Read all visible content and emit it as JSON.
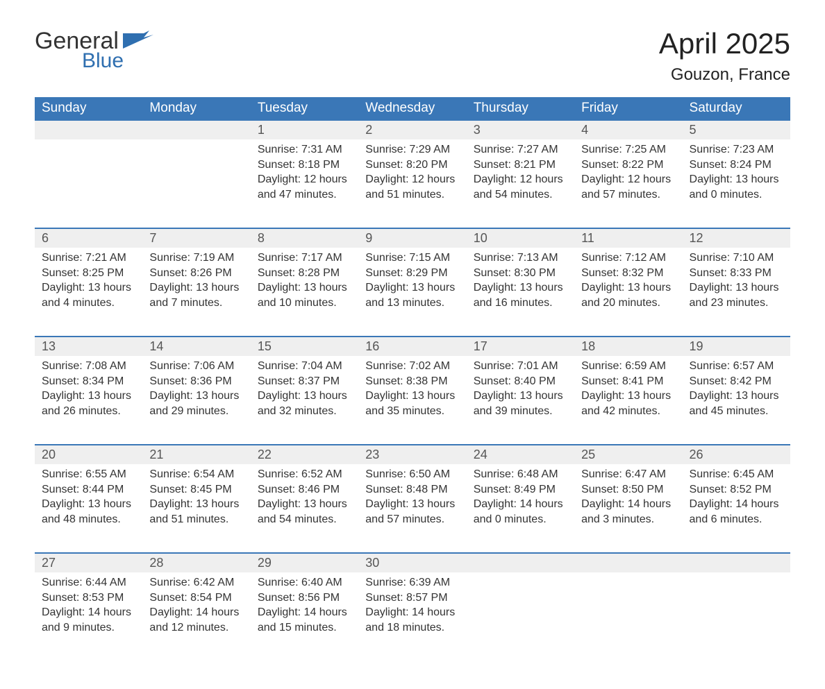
{
  "logo": {
    "general": "General",
    "blue": "Blue"
  },
  "title": "April 2025",
  "location": "Gouzon, France",
  "colors": {
    "header_bg": "#3a77b7",
    "header_text": "#ffffff",
    "daynum_bg": "#efefef",
    "daynum_border": "#3a77b7",
    "body_text": "#333333",
    "page_bg": "#ffffff",
    "logo_blue": "#2f6fb0"
  },
  "weekdays": [
    "Sunday",
    "Monday",
    "Tuesday",
    "Wednesday",
    "Thursday",
    "Friday",
    "Saturday"
  ],
  "weeks": [
    [
      null,
      null,
      {
        "n": "1",
        "sunrise": "7:31 AM",
        "sunset": "8:18 PM",
        "daylight": "12 hours and 47 minutes."
      },
      {
        "n": "2",
        "sunrise": "7:29 AM",
        "sunset": "8:20 PM",
        "daylight": "12 hours and 51 minutes."
      },
      {
        "n": "3",
        "sunrise": "7:27 AM",
        "sunset": "8:21 PM",
        "daylight": "12 hours and 54 minutes."
      },
      {
        "n": "4",
        "sunrise": "7:25 AM",
        "sunset": "8:22 PM",
        "daylight": "12 hours and 57 minutes."
      },
      {
        "n": "5",
        "sunrise": "7:23 AM",
        "sunset": "8:24 PM",
        "daylight": "13 hours and 0 minutes."
      }
    ],
    [
      {
        "n": "6",
        "sunrise": "7:21 AM",
        "sunset": "8:25 PM",
        "daylight": "13 hours and 4 minutes."
      },
      {
        "n": "7",
        "sunrise": "7:19 AM",
        "sunset": "8:26 PM",
        "daylight": "13 hours and 7 minutes."
      },
      {
        "n": "8",
        "sunrise": "7:17 AM",
        "sunset": "8:28 PM",
        "daylight": "13 hours and 10 minutes."
      },
      {
        "n": "9",
        "sunrise": "7:15 AM",
        "sunset": "8:29 PM",
        "daylight": "13 hours and 13 minutes."
      },
      {
        "n": "10",
        "sunrise": "7:13 AM",
        "sunset": "8:30 PM",
        "daylight": "13 hours and 16 minutes."
      },
      {
        "n": "11",
        "sunrise": "7:12 AM",
        "sunset": "8:32 PM",
        "daylight": "13 hours and 20 minutes."
      },
      {
        "n": "12",
        "sunrise": "7:10 AM",
        "sunset": "8:33 PM",
        "daylight": "13 hours and 23 minutes."
      }
    ],
    [
      {
        "n": "13",
        "sunrise": "7:08 AM",
        "sunset": "8:34 PM",
        "daylight": "13 hours and 26 minutes."
      },
      {
        "n": "14",
        "sunrise": "7:06 AM",
        "sunset": "8:36 PM",
        "daylight": "13 hours and 29 minutes."
      },
      {
        "n": "15",
        "sunrise": "7:04 AM",
        "sunset": "8:37 PM",
        "daylight": "13 hours and 32 minutes."
      },
      {
        "n": "16",
        "sunrise": "7:02 AM",
        "sunset": "8:38 PM",
        "daylight": "13 hours and 35 minutes."
      },
      {
        "n": "17",
        "sunrise": "7:01 AM",
        "sunset": "8:40 PM",
        "daylight": "13 hours and 39 minutes."
      },
      {
        "n": "18",
        "sunrise": "6:59 AM",
        "sunset": "8:41 PM",
        "daylight": "13 hours and 42 minutes."
      },
      {
        "n": "19",
        "sunrise": "6:57 AM",
        "sunset": "8:42 PM",
        "daylight": "13 hours and 45 minutes."
      }
    ],
    [
      {
        "n": "20",
        "sunrise": "6:55 AM",
        "sunset": "8:44 PM",
        "daylight": "13 hours and 48 minutes."
      },
      {
        "n": "21",
        "sunrise": "6:54 AM",
        "sunset": "8:45 PM",
        "daylight": "13 hours and 51 minutes."
      },
      {
        "n": "22",
        "sunrise": "6:52 AM",
        "sunset": "8:46 PM",
        "daylight": "13 hours and 54 minutes."
      },
      {
        "n": "23",
        "sunrise": "6:50 AM",
        "sunset": "8:48 PM",
        "daylight": "13 hours and 57 minutes."
      },
      {
        "n": "24",
        "sunrise": "6:48 AM",
        "sunset": "8:49 PM",
        "daylight": "14 hours and 0 minutes."
      },
      {
        "n": "25",
        "sunrise": "6:47 AM",
        "sunset": "8:50 PM",
        "daylight": "14 hours and 3 minutes."
      },
      {
        "n": "26",
        "sunrise": "6:45 AM",
        "sunset": "8:52 PM",
        "daylight": "14 hours and 6 minutes."
      }
    ],
    [
      {
        "n": "27",
        "sunrise": "6:44 AM",
        "sunset": "8:53 PM",
        "daylight": "14 hours and 9 minutes."
      },
      {
        "n": "28",
        "sunrise": "6:42 AM",
        "sunset": "8:54 PM",
        "daylight": "14 hours and 12 minutes."
      },
      {
        "n": "29",
        "sunrise": "6:40 AM",
        "sunset": "8:56 PM",
        "daylight": "14 hours and 15 minutes."
      },
      {
        "n": "30",
        "sunrise": "6:39 AM",
        "sunset": "8:57 PM",
        "daylight": "14 hours and 18 minutes."
      },
      null,
      null,
      null
    ]
  ],
  "labels": {
    "sunrise": "Sunrise: ",
    "sunset": "Sunset: ",
    "daylight": "Daylight: "
  }
}
